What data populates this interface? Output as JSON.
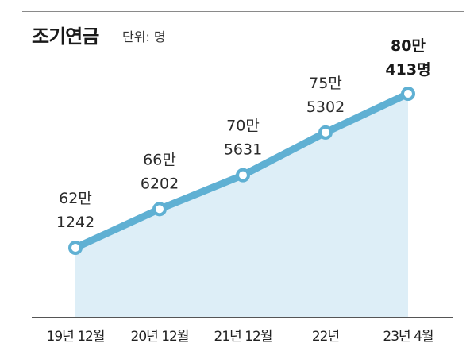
{
  "title": "조기연금",
  "unit_label": "단위: 명",
  "colors": {
    "line": "#5fb0d3",
    "area": "#ddeef7",
    "marker_fill": "#ffffff",
    "axis": "#555555"
  },
  "chart_data": {
    "type": "line",
    "categories": [
      "19년 12월",
      "20년 12월",
      "21년 12월",
      "22년",
      "23년 4월"
    ],
    "values": [
      621242,
      666202,
      705631,
      755302,
      800413
    ],
    "value_labels": [
      [
        "62만",
        "1242"
      ],
      [
        "66만",
        "6202"
      ],
      [
        "70만",
        "5631"
      ],
      [
        "75만",
        "5302"
      ],
      [
        "80만",
        "413명"
      ]
    ],
    "title": "조기연금",
    "unit": "단위: 명",
    "xlabel": "",
    "ylabel": "",
    "grid": false,
    "legend": "none",
    "area_fill": true
  }
}
